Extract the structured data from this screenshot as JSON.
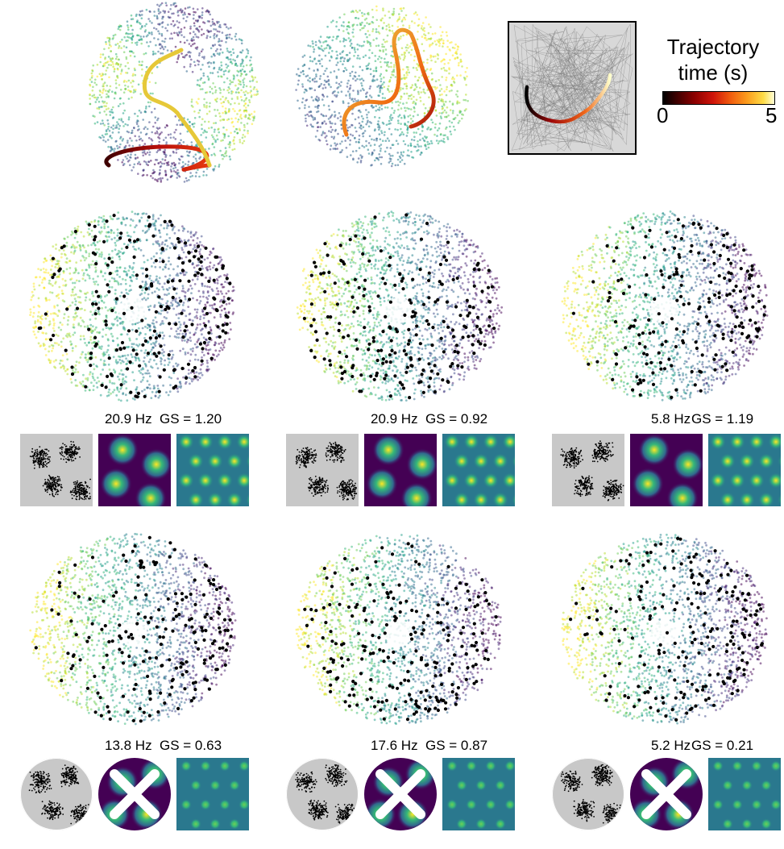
{
  "legend": {
    "title_line1": "Trajectory",
    "title_line2": "time (s)",
    "tick_min": "0",
    "tick_max": "5",
    "colormap": "hot"
  },
  "cells": [
    {
      "rate": "20.9 Hz",
      "gs": "GS = 1.20",
      "arena": "square"
    },
    {
      "rate": "20.9 Hz",
      "gs": "GS = 0.92",
      "arena": "square"
    },
    {
      "rate": "5.8 Hz",
      "gs": "GS = 1.19",
      "arena": "square"
    },
    {
      "rate": "13.8 Hz",
      "gs": "GS = 0.63",
      "arena": "circle"
    },
    {
      "rate": "17.6 Hz",
      "gs": "GS = 0.87",
      "arena": "circle"
    },
    {
      "rate": "5.2 Hz",
      "gs": "GS = 0.21",
      "arena": "circle"
    }
  ],
  "colors": {
    "viridis_dark": "#440154",
    "viridis_mid": "#21918c",
    "viridis_light": "#fde725",
    "spike": "#000000",
    "arena_bg": "#c8c8c8"
  }
}
